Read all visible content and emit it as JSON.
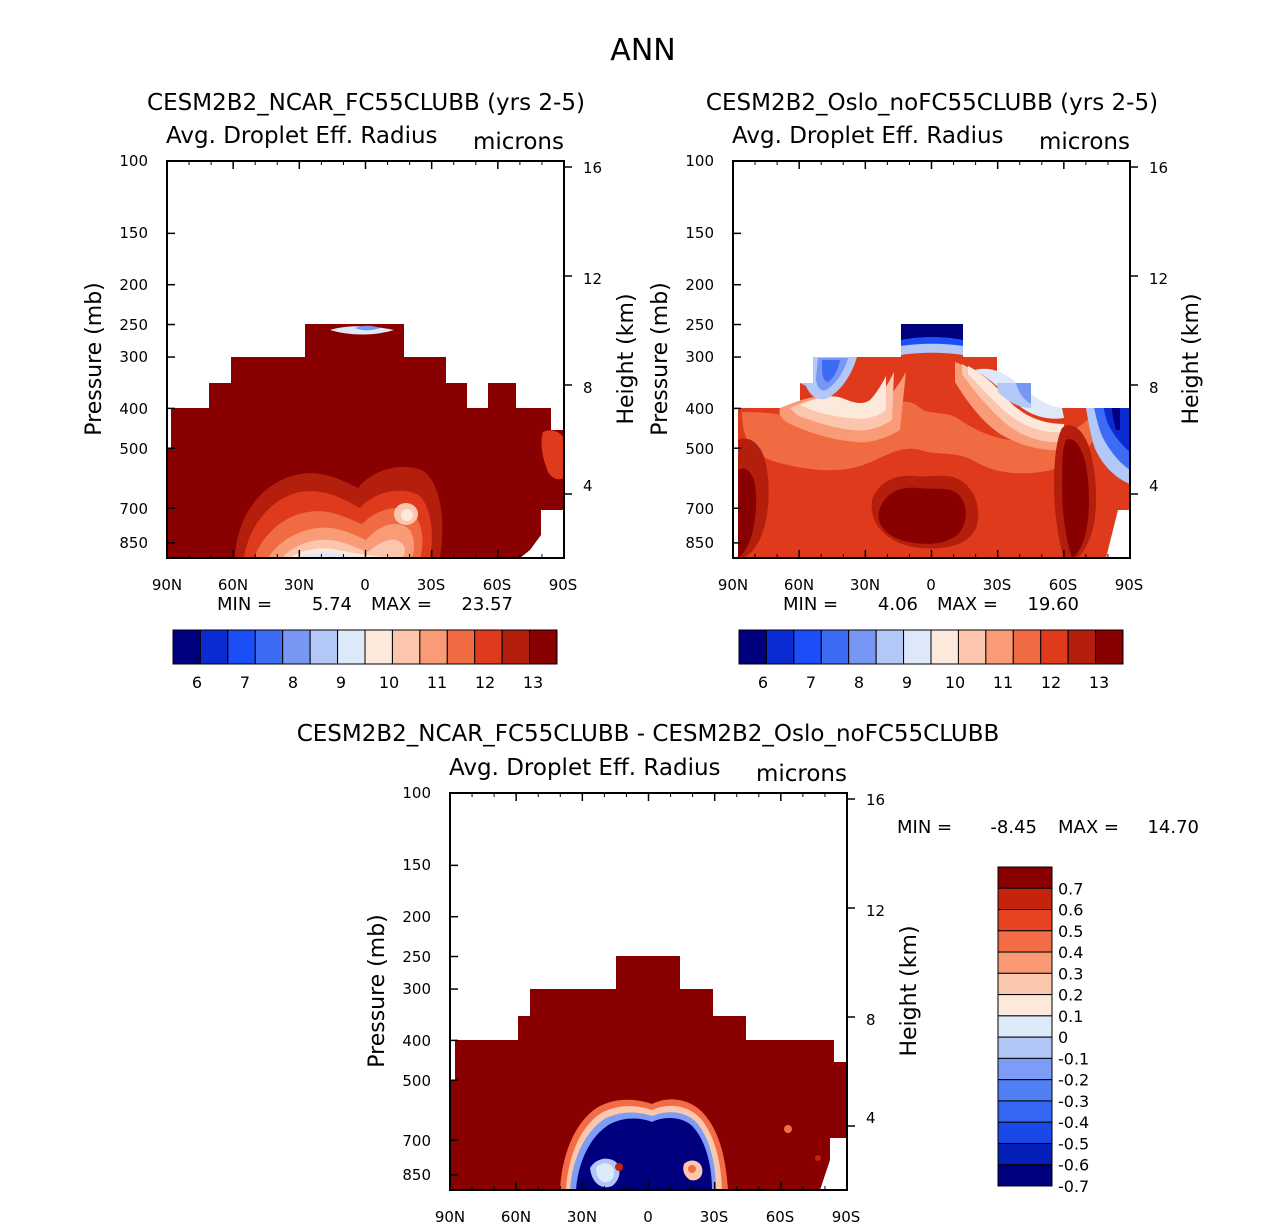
{
  "figure": {
    "title": "ANN",
    "colors": {
      "seq13": [
        "#00007f",
        "#0c2ad1",
        "#1b4ef6",
        "#3d6cf4",
        "#7896f4",
        "#b3c8f6",
        "#dde9f9",
        "#fde9dc",
        "#fcc6ae",
        "#f99b76",
        "#f06a42",
        "#df3a1b",
        "#b41e0c",
        "#880000"
      ],
      "div15": [
        "#00007f",
        "#0520b8",
        "#1a48e9",
        "#3467f3",
        "#5080f4",
        "#7d9cf5",
        "#b0c6f7",
        "#dcebf9",
        "#fde9dc",
        "#fcc8ad",
        "#f99a75",
        "#f46c46",
        "#e84320",
        "#c4230d",
        "#880000"
      ]
    }
  },
  "chart_data": [
    {
      "id": "ncar",
      "type": "heatmap",
      "panel_title": "CESM2B2_NCAR_FC55CLUBB (yrs 2-5)",
      "left_label": "Avg. Droplet Eff. Radius",
      "right_label": "microns",
      "ylabel": "Pressure (mb)",
      "ylabel_right": "Height (km)",
      "x_ticks": [
        "90N",
        "60N",
        "30N",
        "0",
        "30S",
        "60S",
        "90S"
      ],
      "y_ticks": [
        "100",
        "150",
        "200",
        "250",
        "300",
        "400",
        "500",
        "700",
        "850"
      ],
      "y_ticks_right": [
        "16",
        "12",
        "8",
        "4"
      ],
      "min_label": "MIN =",
      "min_value": "5.74",
      "max_label": "MAX =",
      "max_value": "23.57",
      "colorbar_levels": [
        5.5,
        6,
        6.5,
        7,
        7.5,
        8,
        8.5,
        9,
        9.5,
        10,
        10.5,
        11,
        11.5,
        12,
        12.5,
        13
      ],
      "colorbar_labels": [
        "6",
        "7",
        "8",
        "9",
        "10",
        "11",
        "12",
        "13"
      ]
    },
    {
      "id": "oslo",
      "type": "heatmap",
      "panel_title": "CESM2B2_Oslo_noFC55CLUBB (yrs 2-5)",
      "left_label": "Avg. Droplet Eff. Radius",
      "right_label": "microns",
      "ylabel": "Pressure (mb)",
      "ylabel_right": "Height (km)",
      "x_ticks": [
        "90N",
        "60N",
        "30N",
        "0",
        "30S",
        "60S",
        "90S"
      ],
      "y_ticks": [
        "100",
        "150",
        "200",
        "250",
        "300",
        "400",
        "500",
        "700",
        "850"
      ],
      "y_ticks_right": [
        "16",
        "12",
        "8",
        "4"
      ],
      "min_label": "MIN =",
      "min_value": "4.06",
      "max_label": "MAX =",
      "max_value": "19.60",
      "colorbar_levels": [
        5.5,
        6,
        6.5,
        7,
        7.5,
        8,
        8.5,
        9,
        9.5,
        10,
        10.5,
        11,
        11.5,
        12,
        12.5,
        13
      ],
      "colorbar_labels": [
        "6",
        "7",
        "8",
        "9",
        "10",
        "11",
        "12",
        "13"
      ]
    },
    {
      "id": "diff",
      "type": "heatmap",
      "panel_title": "CESM2B2_NCAR_FC55CLUBB - CESM2B2_Oslo_noFC55CLUBB",
      "left_label": "Avg. Droplet Eff. Radius",
      "right_label": "microns",
      "ylabel": "Pressure (mb)",
      "ylabel_right": "Height (km)",
      "x_ticks": [
        "90N",
        "60N",
        "30N",
        "0",
        "30S",
        "60S",
        "90S"
      ],
      "y_ticks": [
        "100",
        "150",
        "200",
        "250",
        "300",
        "400",
        "500",
        "700",
        "850"
      ],
      "y_ticks_right": [
        "16",
        "12",
        "8",
        "4"
      ],
      "min_label": "MIN =",
      "min_value": "-8.45",
      "max_label": "MAX =",
      "max_value": "14.70",
      "colorbar_labels": [
        "0.7",
        "0.6",
        "0.5",
        "0.4",
        "0.3",
        "0.2",
        "0.1",
        "0",
        "-0.1",
        "-0.2",
        "-0.3",
        "-0.4",
        "-0.5",
        "-0.6",
        "-0.7"
      ]
    }
  ]
}
